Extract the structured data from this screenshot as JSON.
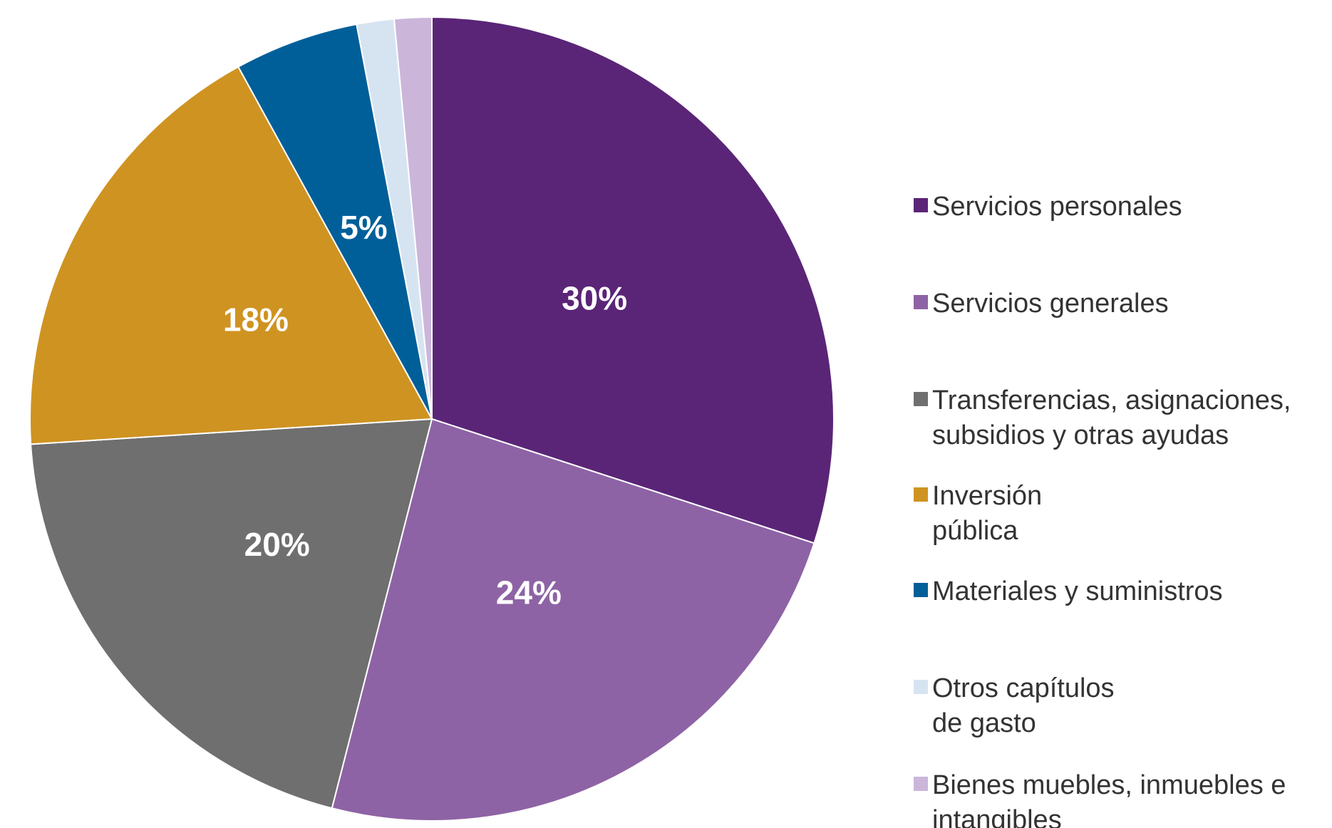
{
  "chart_data": {
    "type": "pie",
    "categories": [
      "Servicios personales",
      "Servicios generales",
      "Transferencias, asignaciones,\nsubsidios y otras ayudas",
      "Inversión\npública",
      "Materiales y suministros",
      "Otros capítulos\nde gasto",
      "Bienes muebles, inmuebles e\nintangibles"
    ],
    "values": [
      30,
      24,
      20,
      18,
      5,
      1.5,
      1.5
    ],
    "value_labels": [
      "30%",
      "24%",
      "20%",
      "18%",
      "5%",
      null,
      null
    ],
    "colors": [
      "#5a2577",
      "#8e63a5",
      "#6f6f6f",
      "#cf9321",
      "#005f99",
      "#d6e4f2",
      "#cbb6da"
    ],
    "legend": "right"
  }
}
